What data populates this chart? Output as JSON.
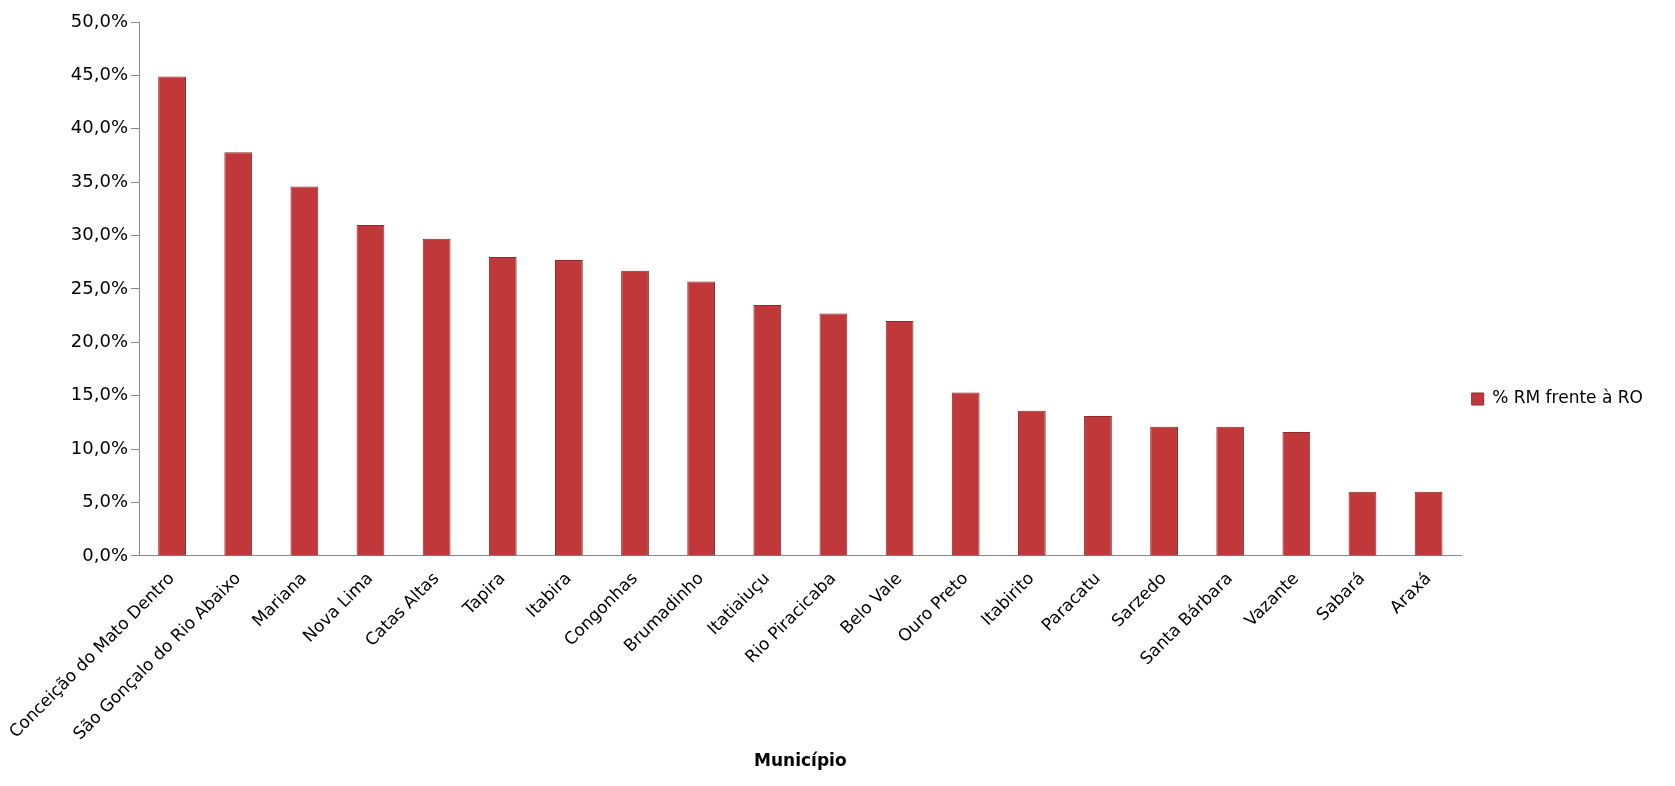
{
  "chart_data": {
    "type": "bar",
    "xlabel": "Município",
    "categories": [
      "Conceição do Mato Dentro",
      "São Gonçalo do Rio Abaixo",
      "Mariana",
      "Nova Lima",
      "Catas Altas",
      "Tapira",
      "Itabira",
      "Congonhas",
      "Brumadinho",
      "Itatiaiuçu",
      "Rio Piracicaba",
      "Belo Vale",
      "Ouro Preto",
      "Itabirito",
      "Paracatu",
      "Sarzedo",
      "Santa Bárbara",
      "Vazante",
      "Sabará",
      "Araxá"
    ],
    "series": [
      {
        "name": "% RM frente à RO",
        "color": "#c0383a",
        "values": [
          44.9,
          37.8,
          34.6,
          31.0,
          29.7,
          28.0,
          27.7,
          26.7,
          25.7,
          23.5,
          22.7,
          22.0,
          15.3,
          13.6,
          13.1,
          12.1,
          12.1,
          11.6,
          6.0,
          6.0
        ]
      }
    ],
    "ylim": [
      0,
      50
    ],
    "yticks": [
      {
        "value": 0,
        "label": "0,0%"
      },
      {
        "value": 5,
        "label": "5,0%"
      },
      {
        "value": 10,
        "label": "10,0%"
      },
      {
        "value": 15,
        "label": "15,0%"
      },
      {
        "value": 20,
        "label": "20,0%"
      },
      {
        "value": 25,
        "label": "25,0%"
      },
      {
        "value": 30,
        "label": "30,0%"
      },
      {
        "value": 35,
        "label": "35,0%"
      },
      {
        "value": 40,
        "label": "40,0%"
      },
      {
        "value": 45,
        "label": "45,0%"
      },
      {
        "value": 50,
        "label": "50,0%"
      }
    ],
    "grid": false,
    "legend": "right"
  }
}
